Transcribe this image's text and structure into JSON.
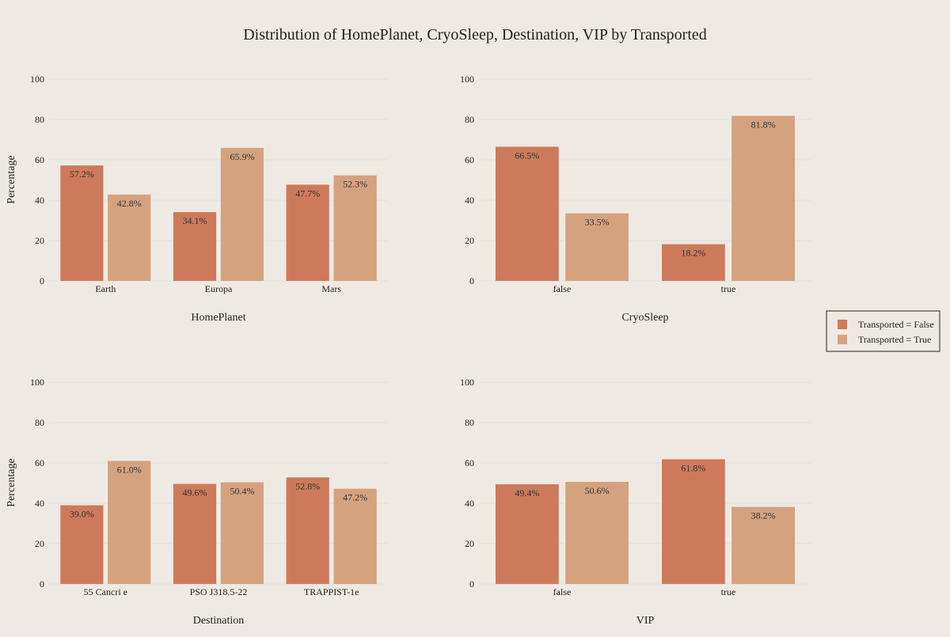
{
  "chart_data": {
    "title": "Distribution of HomePlanet, CryoSleep, Destination, VIP by Transported",
    "type": "bar",
    "legend": {
      "placement": "right",
      "entries": [
        "Transported = False",
        "Transported = True"
      ]
    },
    "colors": {
      "Transported = False": "#CD7A5C",
      "Transported = True": "#D5A27F"
    },
    "subplots": [
      {
        "type": "bar",
        "xlabel": "HomePlanet",
        "ylabel": "Percentage",
        "ylim": [
          0,
          100
        ],
        "yticks": [
          0,
          20,
          40,
          60,
          80,
          100
        ],
        "categories": [
          "Earth",
          "Europa",
          "Mars"
        ],
        "series": [
          {
            "name": "Transported = False",
            "values": [
              57.2,
              34.1,
              47.7
            ],
            "labels": [
              "57.2%",
              "34.1%",
              "47.7%"
            ]
          },
          {
            "name": "Transported = True",
            "values": [
              42.8,
              65.9,
              52.3
            ],
            "labels": [
              "42.8%",
              "65.9%",
              "52.3%"
            ]
          }
        ]
      },
      {
        "type": "bar",
        "xlabel": "CryoSleep",
        "ylabel": "",
        "ylim": [
          0,
          100
        ],
        "yticks": [
          0,
          20,
          40,
          60,
          80,
          100
        ],
        "categories": [
          "false",
          "true"
        ],
        "series": [
          {
            "name": "Transported = False",
            "values": [
              66.5,
              18.2
            ],
            "labels": [
              "66.5%",
              "18.2%"
            ]
          },
          {
            "name": "Transported = True",
            "values": [
              33.5,
              81.8
            ],
            "labels": [
              "33.5%",
              "81.8%"
            ]
          }
        ]
      },
      {
        "type": "bar",
        "xlabel": "Destination",
        "ylabel": "Percentage",
        "ylim": [
          0,
          100
        ],
        "yticks": [
          0,
          20,
          40,
          60,
          80,
          100
        ],
        "categories": [
          "55 Cancri e",
          "PSO J318.5-22",
          "TRAPPIST-1e"
        ],
        "series": [
          {
            "name": "Transported = False",
            "values": [
              39.0,
              49.6,
              52.8
            ],
            "labels": [
              "39.0%",
              "49.6%",
              "52.8%"
            ]
          },
          {
            "name": "Transported = True",
            "values": [
              61.0,
              50.4,
              47.2
            ],
            "labels": [
              "61.0%",
              "50.4%",
              "47.2%"
            ]
          }
        ]
      },
      {
        "type": "bar",
        "xlabel": "VIP",
        "ylabel": "",
        "ylim": [
          0,
          100
        ],
        "yticks": [
          0,
          20,
          40,
          60,
          80,
          100
        ],
        "categories": [
          "false",
          "true"
        ],
        "series": [
          {
            "name": "Transported = False",
            "values": [
              49.4,
              61.8
            ],
            "labels": [
              "49.4%",
              "61.8%"
            ]
          },
          {
            "name": "Transported = True",
            "values": [
              50.6,
              38.2
            ],
            "labels": [
              "50.6%",
              "38.2%"
            ]
          }
        ]
      }
    ]
  }
}
